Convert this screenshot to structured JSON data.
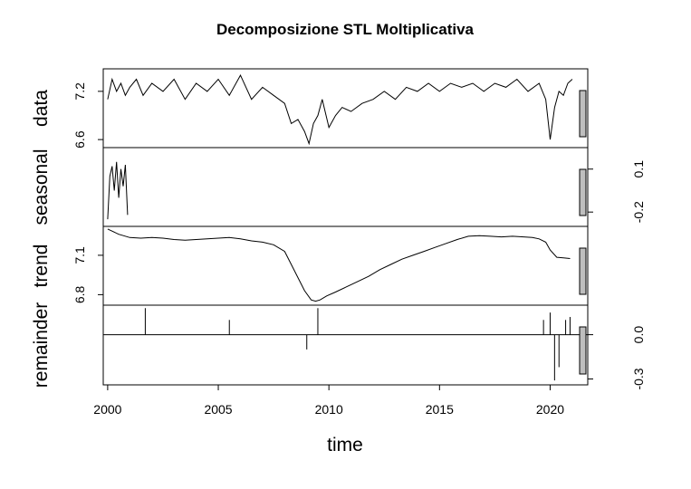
{
  "chart_data": {
    "type": "line",
    "title": "Decomposizione STL Moltiplicativa",
    "xlabel": "time",
    "x_ticks": [
      2000,
      2005,
      2010,
      2015,
      2020
    ],
    "xlim": [
      1999.8,
      2021.7
    ],
    "panels": [
      {
        "name": "data",
        "ylabel": "data",
        "tick_side": "left",
        "ylim": [
          6.5,
          7.48
        ],
        "y_ticks": [
          6.6,
          7.2
        ],
        "y_tick_labels": [
          "6.6",
          "7.2"
        ],
        "series": [
          {
            "x": [
              2000.0,
              2000.2,
              2000.4,
              2000.6,
              2000.8,
              2001.0,
              2001.3,
              2001.6,
              2002.0,
              2002.5,
              2003.0,
              2003.5,
              2004.0,
              2004.5,
              2005.0,
              2005.5,
              2006.0,
              2006.5,
              2007.0,
              2007.5,
              2008.0,
              2008.3,
              2008.6,
              2008.9,
              2009.1,
              2009.3,
              2009.5,
              2009.7,
              2010.0,
              2010.3,
              2010.6,
              2011.0,
              2011.5,
              2012.0,
              2012.5,
              2013.0,
              2013.5,
              2014.0,
              2014.5,
              2015.0,
              2015.5,
              2016.0,
              2016.5,
              2017.0,
              2017.5,
              2018.0,
              2018.5,
              2019.0,
              2019.5,
              2019.8,
              2020.0,
              2020.2,
              2020.4,
              2020.6,
              2020.8,
              2021.0
            ],
            "y": [
              7.1,
              7.35,
              7.2,
              7.3,
              7.15,
              7.25,
              7.35,
              7.15,
              7.3,
              7.2,
              7.35,
              7.1,
              7.3,
              7.2,
              7.35,
              7.15,
              7.4,
              7.1,
              7.25,
              7.15,
              7.05,
              6.8,
              6.85,
              6.7,
              6.55,
              6.8,
              6.9,
              7.1,
              6.75,
              6.9,
              7.0,
              6.95,
              7.05,
              7.1,
              7.2,
              7.1,
              7.25,
              7.2,
              7.3,
              7.2,
              7.3,
              7.25,
              7.3,
              7.2,
              7.3,
              7.25,
              7.35,
              7.2,
              7.3,
              7.1,
              6.6,
              7.0,
              7.2,
              7.15,
              7.3,
              7.35
            ]
          }
        ]
      },
      {
        "name": "seasonal",
        "ylabel": "seasonal",
        "tick_side": "right",
        "ylim": [
          -0.3,
          0.25
        ],
        "y_ticks": [
          -0.2,
          0.1
        ],
        "y_tick_labels": [
          "-0.2",
          "0.1"
        ],
        "series": [
          {
            "x": [
              2000.0,
              2000.1,
              2000.2,
              2000.3,
              2000.4,
              2000.5,
              2000.6,
              2000.7,
              2000.8,
              2000.9
            ],
            "y": [
              -0.25,
              0.05,
              0.12,
              -0.05,
              0.15,
              -0.1,
              0.1,
              -0.02,
              0.13,
              -0.22
            ]
          }
        ]
      },
      {
        "name": "trend",
        "ylabel": "trend",
        "tick_side": "left",
        "ylim": [
          6.72,
          7.32
        ],
        "y_ticks": [
          6.8,
          7.1
        ],
        "y_tick_labels": [
          "6.8",
          "7.1"
        ],
        "series": [
          {
            "x": [
              2000.0,
              2000.5,
              2001.0,
              2001.5,
              2002.0,
              2002.5,
              2003.0,
              2003.5,
              2004.0,
              2004.5,
              2005.0,
              2005.5,
              2006.0,
              2006.5,
              2007.0,
              2007.5,
              2008.0,
              2008.3,
              2008.6,
              2008.9,
              2009.2,
              2009.4,
              2009.6,
              2009.9,
              2010.3,
              2010.8,
              2011.3,
              2011.8,
              2012.3,
              2012.8,
              2013.3,
              2013.8,
              2014.3,
              2014.8,
              2015.3,
              2015.8,
              2016.3,
              2016.8,
              2017.3,
              2017.8,
              2018.3,
              2018.8,
              2019.2,
              2019.5,
              2019.8,
              2020.0,
              2020.3,
              2020.6,
              2020.9
            ],
            "y": [
              7.3,
              7.26,
              7.235,
              7.23,
              7.235,
              7.23,
              7.22,
              7.215,
              7.22,
              7.225,
              7.23,
              7.235,
              7.225,
              7.21,
              7.2,
              7.18,
              7.13,
              7.03,
              6.93,
              6.83,
              6.76,
              6.75,
              6.76,
              6.79,
              6.82,
              6.86,
              6.9,
              6.94,
              6.99,
              7.03,
              7.07,
              7.1,
              7.13,
              7.16,
              7.19,
              7.22,
              7.245,
              7.25,
              7.245,
              7.24,
              7.245,
              7.24,
              7.235,
              7.225,
              7.2,
              7.14,
              7.085,
              7.08,
              7.075
            ]
          }
        ]
      },
      {
        "name": "remainder",
        "ylabel": "remainder",
        "tick_side": "right",
        "ylim": [
          -0.34,
          0.2
        ],
        "y_ticks": [
          -0.3,
          0.0
        ],
        "y_tick_labels": [
          "-0.3",
          "0.0"
        ],
        "baseline": 0,
        "bars": [
          {
            "x": 2001.7,
            "y": 0.18
          },
          {
            "x": 2005.5,
            "y": 0.1
          },
          {
            "x": 2009.0,
            "y": -0.1
          },
          {
            "x": 2009.5,
            "y": 0.18
          },
          {
            "x": 2019.7,
            "y": 0.1
          },
          {
            "x": 2020.0,
            "y": 0.15
          },
          {
            "x": 2020.2,
            "y": -0.31
          },
          {
            "x": 2020.4,
            "y": -0.22
          },
          {
            "x": 2020.7,
            "y": 0.1
          },
          {
            "x": 2020.9,
            "y": 0.12
          }
        ]
      }
    ]
  }
}
